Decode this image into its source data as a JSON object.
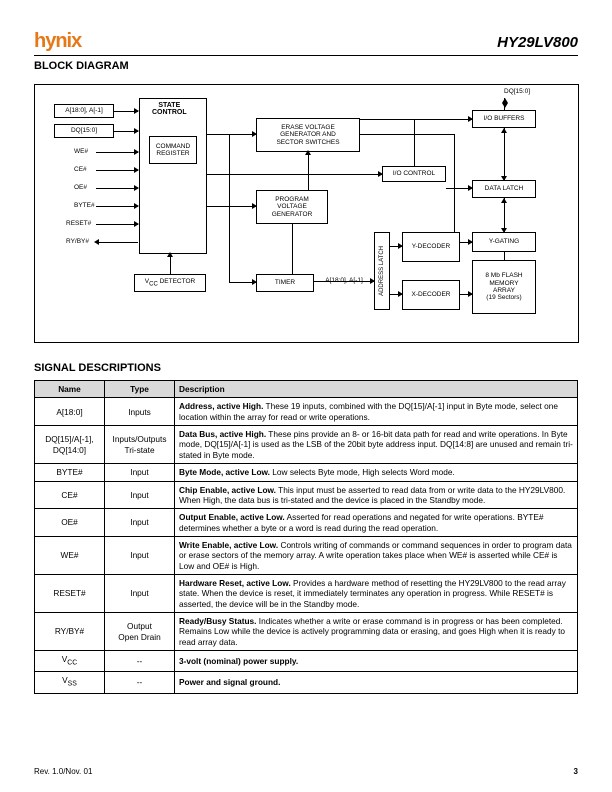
{
  "header": {
    "logo": "hynix",
    "part": "HY29LV800"
  },
  "sections": {
    "block": "BLOCK DIAGRAM",
    "signals": "SIGNAL DESCRIPTIONS"
  },
  "diagram": {
    "state_control": "STATE\nCONTROL",
    "command_register": "COMMAND\nREGISTER",
    "vcc_detector": "V",
    "vcc_detector_sub": "CC",
    "vcc_detector_tail": " DETECTOR",
    "erase_gen": "ERASE VOLTAGE\nGENERATOR AND\nSECTOR SWITCHES",
    "prog_gen": "PROGRAM\nVOLTAGE\nGENERATOR",
    "timer": "TIMER",
    "io_control": "I/O CONTROL",
    "io_buffers": "I/O BUFFERS",
    "data_latch": "DATA LATCH",
    "y_decoder": "Y-DECODER",
    "x_decoder": "X-DECODER",
    "y_gating": "Y-GATING",
    "memory_array": "8 Mb FLASH\nMEMORY\nARRAY\n(19 Sectors)",
    "addr_latch": "ADDRESS LATCH",
    "inputs": {
      "a": "A[18:0], A[-1]",
      "dq_top": "DQ[15:0]",
      "dq": "DQ[15:0]",
      "we": "WE#",
      "ce": "CE#",
      "oe": "OE#",
      "byte": "BYTE#",
      "reset": "RESET#",
      "ryby": "RY/BY#",
      "a_bottom": "A[18:0], A[-1]"
    }
  },
  "table": {
    "headers": [
      "Name",
      "Type",
      "Description"
    ],
    "rows": [
      {
        "n": "A[18:0]",
        "t": "Inputs",
        "d": "<b>Address, active High.</b>  These 19 inputs, combined with the DQ[15]/A[-1] input in Byte mode, select one location within the array for read or write operations."
      },
      {
        "n": "DQ[15]/A[-1],<br>DQ[14:0]",
        "t": "Inputs/Outputs<br>Tri-state",
        "d": "<b>Data Bus, active High.</b>  These pins provide an 8- or 16-bit data path for read and write operations. In Byte mode, DQ[15]/A[-1] is used as the LSB of the 20bit byte address input.  DQ[14:8] are unused and remain tri-stated in Byte mode."
      },
      {
        "n": "BYTE#",
        "t": "Input",
        "d": "<b>Byte Mode, active Low.</b>  Low selects Byte mode, High selects Word mode."
      },
      {
        "n": "CE#",
        "t": "Input",
        "d": "<b>Chip Enable, active Low.</b>  This input must be asserted to read data from or write data to the HY29LV800.  When High, the data bus is tri-stated and the device is placed in the Standby mode."
      },
      {
        "n": "OE#",
        "t": "Input",
        "d": "<b>Output Enable, active Low.</b>  Asserted for read operations and negated for write operations.  BYTE# determines whether a byte or a word is read during the read operation."
      },
      {
        "n": "WE#",
        "t": "Input",
        "d": "<b>Write Enable, active Low.</b>  Controls writing of commands or command sequences in order to program data or erase sectors of the memory array.  A write operation takes place when WE# is asserted while CE# is Low and OE# is High."
      },
      {
        "n": "RESET#",
        "t": "Input",
        "d": "<b>Hardware Reset, active Low.</b>  Provides a hardware method of resetting the HY29LV800 to the read array state.  When the device is reset, it immediately terminates any operation in progress.  While RESET# is asserted, the device will be in the Standby mode."
      },
      {
        "n": "RY/BY#",
        "t": "Output<br>Open Drain",
        "d": "<b>Ready/Busy Status.</b>  Indicates whether a write or erase command is in progress or has been completed.  Remains Low while the device is actively programming data or erasing, and goes High when it is ready to read array data."
      },
      {
        "n": "V<sub>CC</sub>",
        "t": "--",
        "d": "<b>3-volt (nominal) power supply.</b>"
      },
      {
        "n": "V<sub>SS</sub>",
        "t": "--",
        "d": "<b>Power and signal ground.</b>"
      }
    ]
  },
  "footer": {
    "rev": "Rev. 1.0/Nov. 01",
    "page": "3"
  },
  "colors": {
    "accent": "#e67817",
    "header_bg": "#d9d9d9",
    "border": "#000000"
  }
}
